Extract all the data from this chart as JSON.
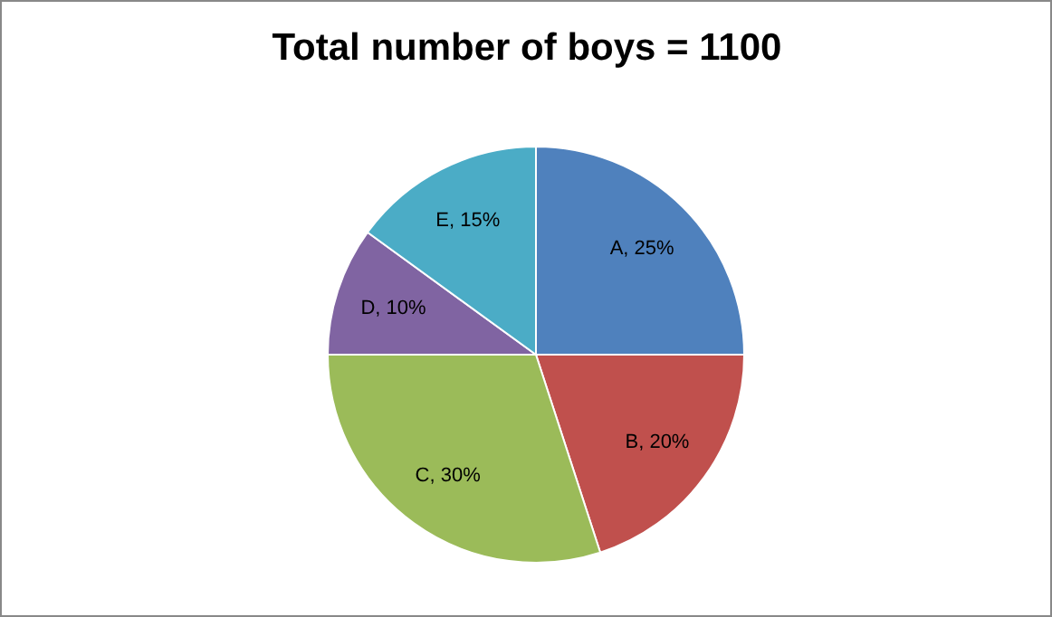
{
  "chart_data": {
    "type": "pie",
    "title": "Total number of boys = 1100",
    "categories": [
      "A",
      "B",
      "C",
      "D",
      "E"
    ],
    "values": [
      25,
      20,
      30,
      10,
      15
    ],
    "colors": [
      "#4f81bd",
      "#c0504d",
      "#9bbb59",
      "#8064a2",
      "#4bacc6"
    ],
    "value_labels": [
      "25%",
      "20%",
      "30%",
      "10%",
      "15%"
    ],
    "legend": false
  }
}
